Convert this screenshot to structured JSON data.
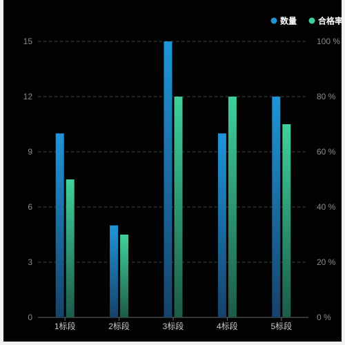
{
  "chart_data": {
    "type": "bar",
    "categories": [
      "1标段",
      "2标段",
      "3标段",
      "4标段",
      "5标段"
    ],
    "series": [
      {
        "name": "数量",
        "values": [
          10,
          5,
          15,
          10,
          12
        ],
        "axis": "left",
        "color_top": "#1f95d9",
        "color_bottom": "#16426a"
      },
      {
        "name": "合格率",
        "values": [
          50,
          30,
          80,
          80,
          70
        ],
        "axis": "right",
        "unit": "%",
        "color_top": "#3fd19a",
        "color_bottom": "#1d5a4a"
      }
    ],
    "y_left": {
      "ticks": [
        "0",
        "3",
        "6",
        "9",
        "12",
        "15"
      ],
      "min": 0,
      "max": 15
    },
    "y_right": {
      "ticks": [
        "0 %",
        "20 %",
        "40 %",
        "60 %",
        "80 %",
        "100 %"
      ],
      "min": 0,
      "max": 100
    },
    "grid": "dashed horizontal",
    "legend_position": "top-right"
  },
  "colors": {
    "background": "#020202",
    "grid": "#3a4a48",
    "axis_line": "#6a6a6a"
  }
}
